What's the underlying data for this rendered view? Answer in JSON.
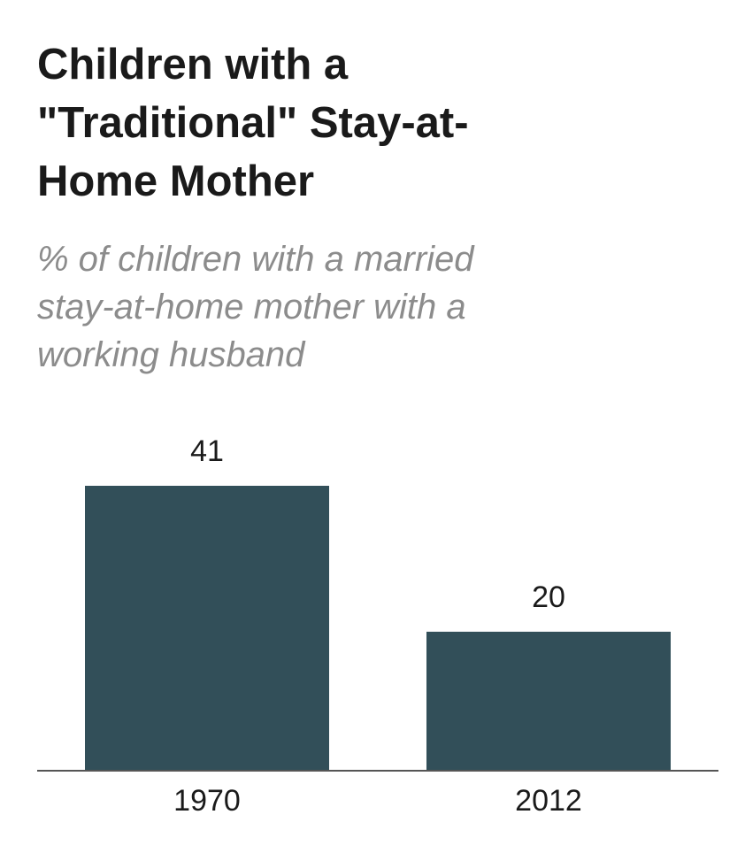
{
  "chart_data": {
    "type": "bar",
    "title": "Children with a\n\"Traditional\" Stay-at-\nHome Mother",
    "subtitle": "% of children with a married\nstay-at-home mother with a\nworking husband",
    "categories": [
      "1970",
      "2012"
    ],
    "values": [
      41,
      20
    ],
    "data_labels": [
      "41",
      "20"
    ],
    "ylim": [
      0,
      41
    ],
    "grid": false,
    "bar_color": "#324f59",
    "axis_color": "#555555"
  }
}
